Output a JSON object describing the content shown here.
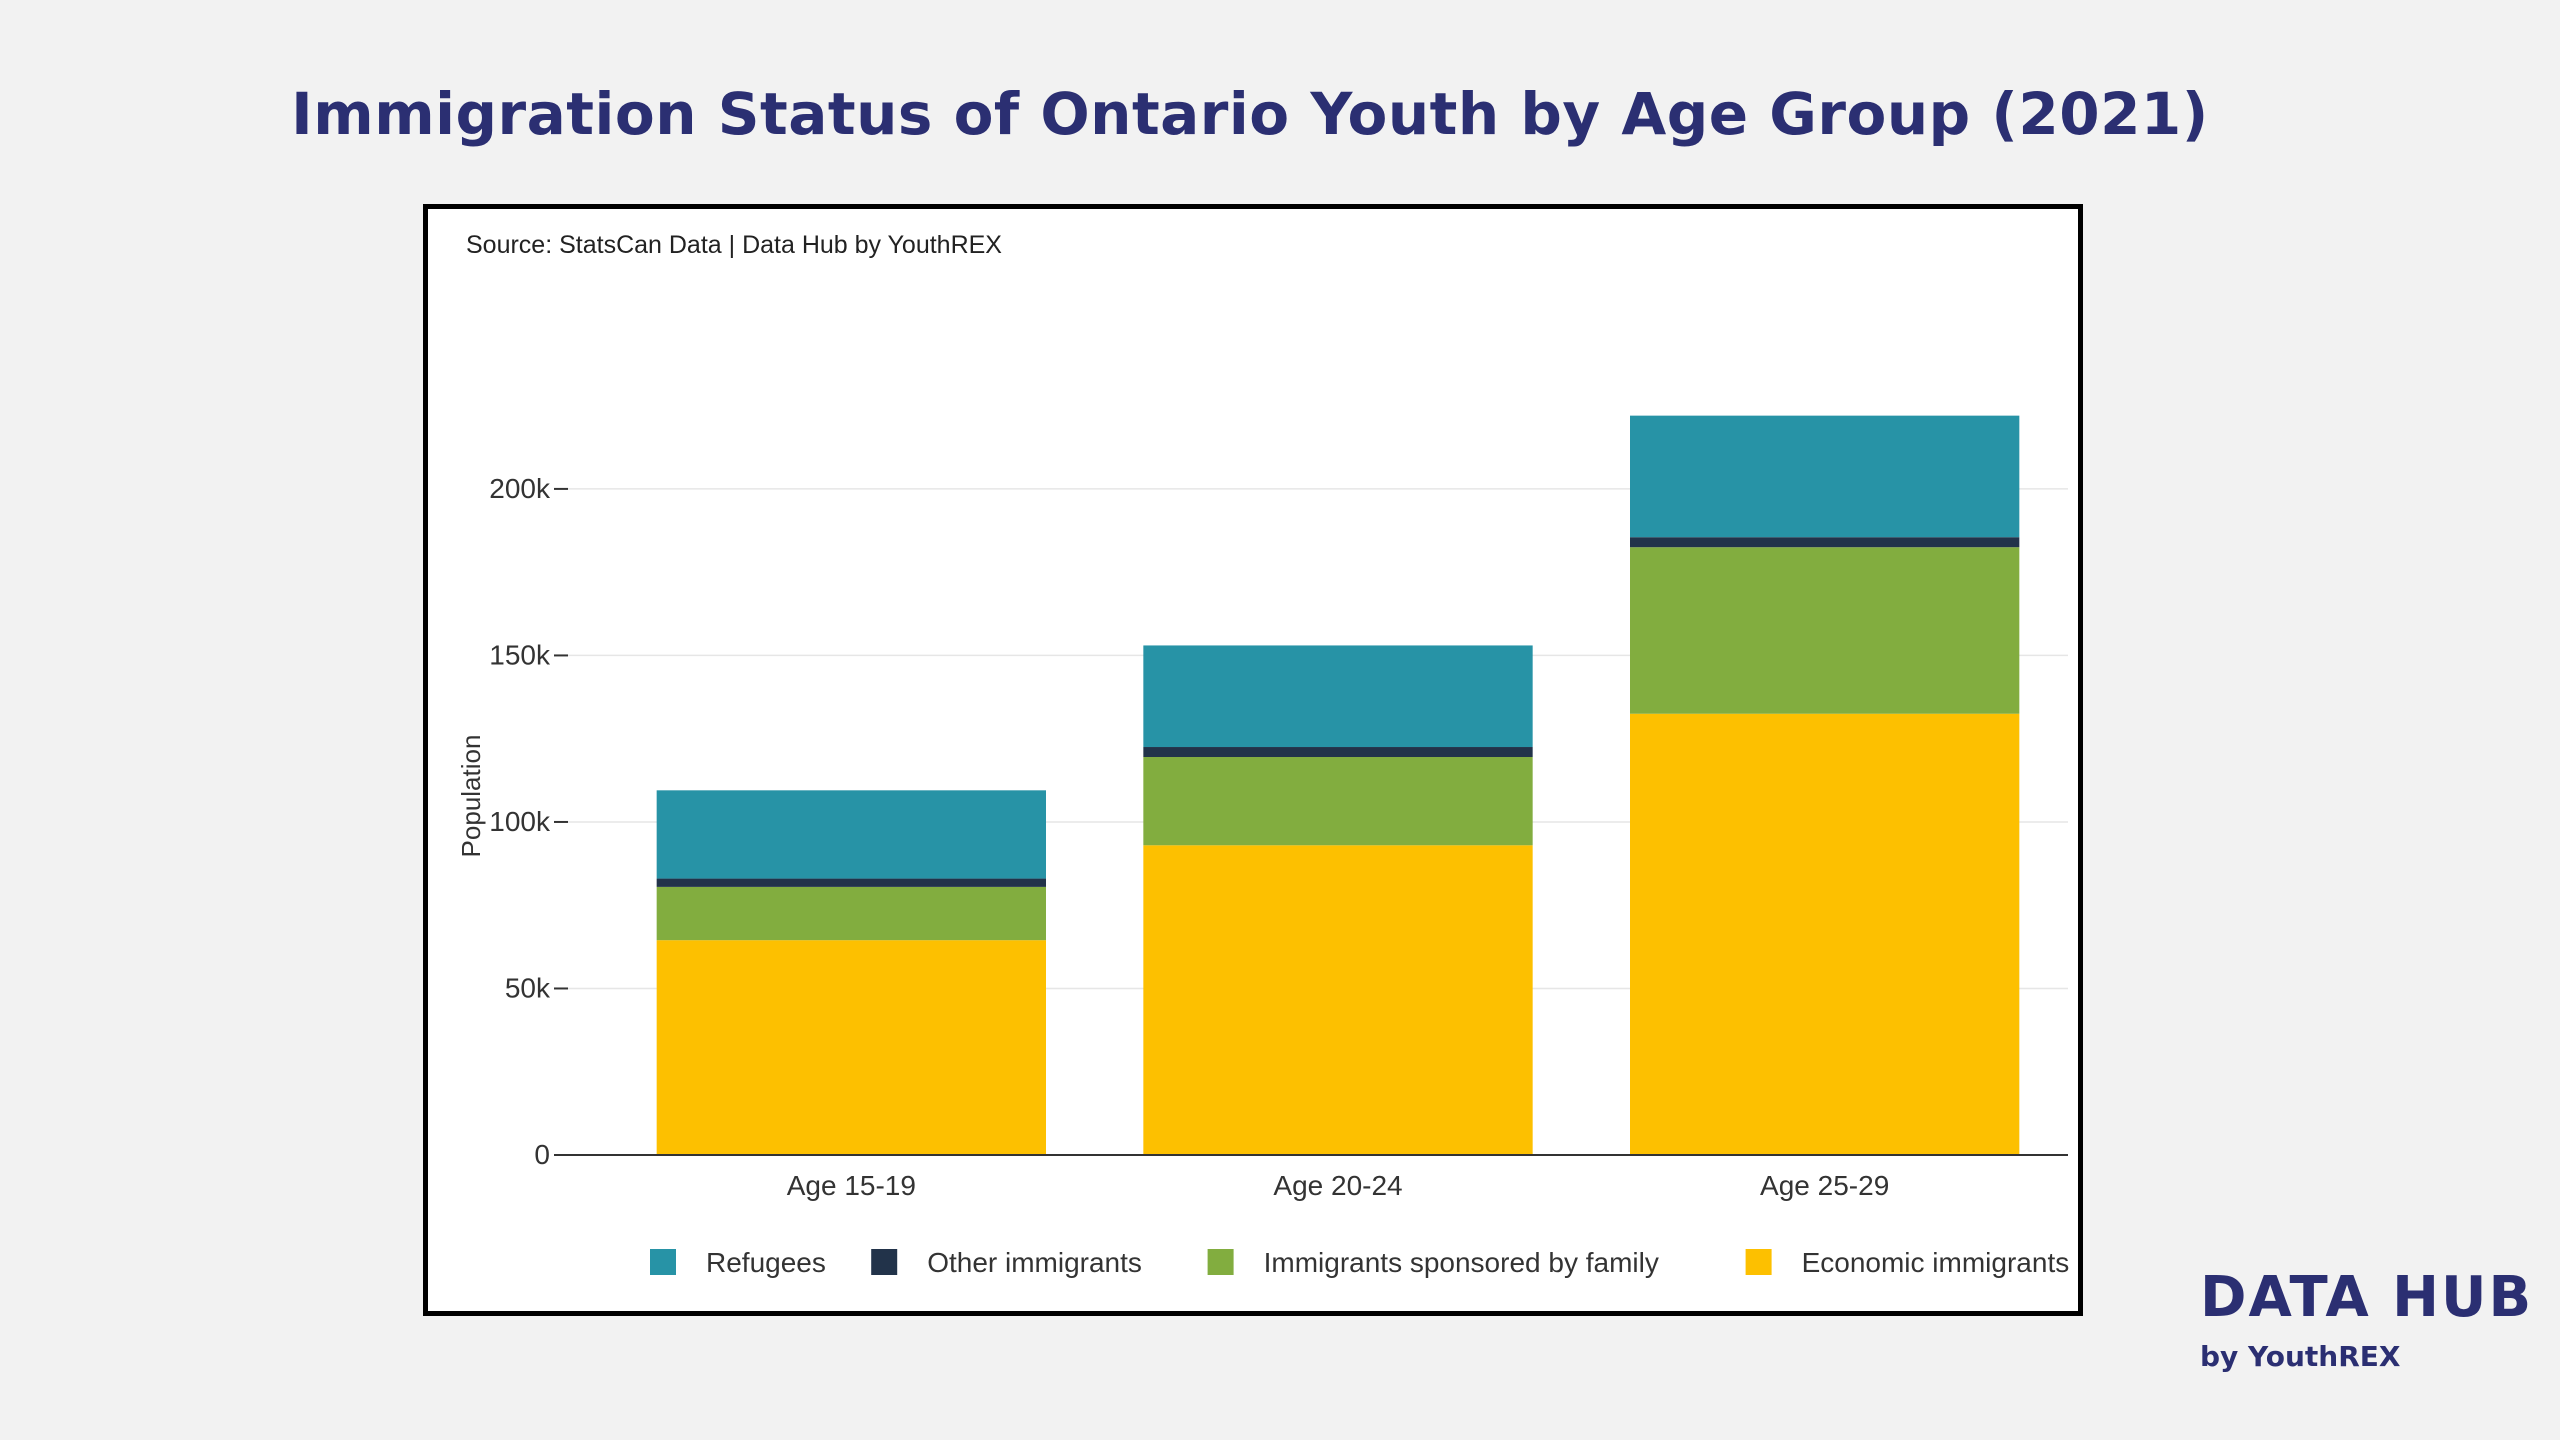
{
  "title": "Immigration Status of Ontario Youth by Age Group (2021)",
  "source": "Source: StatsCan Data | Data Hub by YouthREX",
  "brand": {
    "name": "DATA HUB",
    "tagline": "by YouthREX"
  },
  "colors": {
    "title": "#2b2f72",
    "refugees": "#2793a6",
    "other_immigrants": "#22334a",
    "family": "#82ad3f",
    "economic": "#fdc000",
    "axis": "#333333",
    "grid": "#e6e6e6"
  },
  "chart_data": {
    "type": "bar",
    "stacked": true,
    "categories": [
      "Age 15-19",
      "Age 20-24",
      "Age 25-29"
    ],
    "series": [
      {
        "name": "Economic immigrants",
        "color": "#fdc000",
        "values": [
          64500,
          93000,
          132500
        ]
      },
      {
        "name": "Immigrants sponsored by family",
        "color": "#82ad3f",
        "values": [
          16000,
          26500,
          50000
        ]
      },
      {
        "name": "Other immigrants",
        "color": "#22334a",
        "values": [
          2500,
          3000,
          3000
        ]
      },
      {
        "name": "Refugees",
        "color": "#2793a6",
        "values": [
          26500,
          30500,
          36500
        ]
      }
    ],
    "xlabel": "",
    "ylabel": "Population",
    "ylim": [
      0,
      230000
    ],
    "yticks": [
      0,
      50000,
      100000,
      150000,
      200000
    ],
    "ytick_labels": [
      "0",
      "50k",
      "100k",
      "150k",
      "200k"
    ],
    "grid": true,
    "legend_position": "bottom",
    "legend_order": [
      "Refugees",
      "Other immigrants",
      "Immigrants sponsored by family",
      "Economic immigrants"
    ]
  }
}
